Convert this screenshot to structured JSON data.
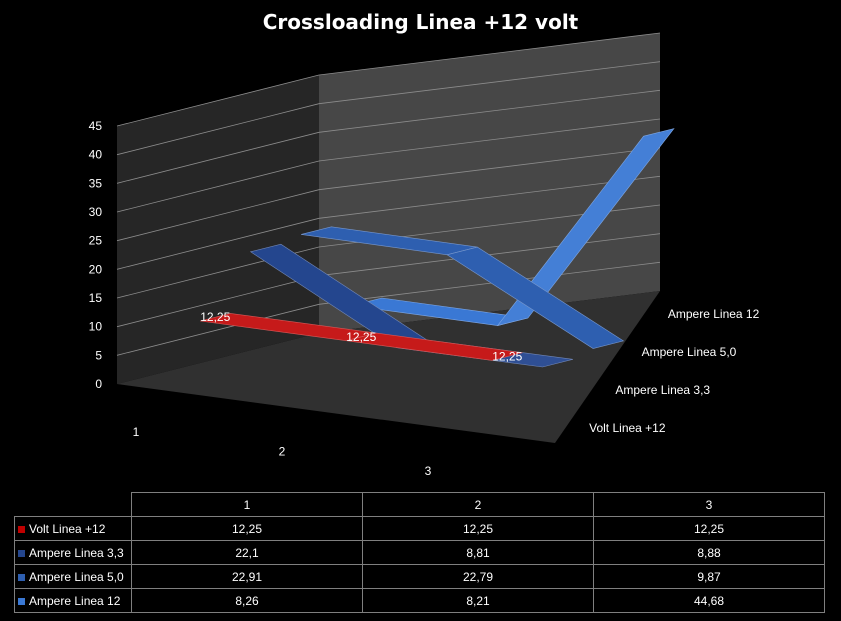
{
  "chart_data": {
    "type": "line",
    "subtype": "3d-line",
    "title": "Crossloading  Linea +12 volt",
    "categories": [
      "1",
      "2",
      "3"
    ],
    "ylim": [
      0,
      45
    ],
    "yticks": [
      "0",
      "5",
      "10",
      "15",
      "20",
      "25",
      "30",
      "35",
      "40",
      "45"
    ],
    "grid": true,
    "legend": "data table below chart",
    "series": [
      {
        "name": "Volt Linea +12",
        "values": [
          12.25,
          12.25,
          12.25
        ],
        "labels": [
          "12,25",
          "12,25",
          "12,25"
        ],
        "display": [
          "12,25",
          "12,25",
          "12,25"
        ],
        "color": "#c00000"
      },
      {
        "name": "Ampere Linea 3,3",
        "values": [
          22.1,
          8.81,
          8.88
        ],
        "display": [
          "22,1",
          "8,81",
          "8,88"
        ],
        "color": "#24468e"
      },
      {
        "name": "Ampere Linea 5,0",
        "values": [
          22.91,
          22.79,
          9.87
        ],
        "display": [
          "22,91",
          "22,79",
          "9,87"
        ],
        "color": "#2e5fb0"
      },
      {
        "name": "Ampere Linea 12",
        "values": [
          8.26,
          8.21,
          44.68
        ],
        "display": [
          "8,26",
          "8,21",
          "44,68"
        ],
        "color": "#3a78d4"
      }
    ]
  }
}
